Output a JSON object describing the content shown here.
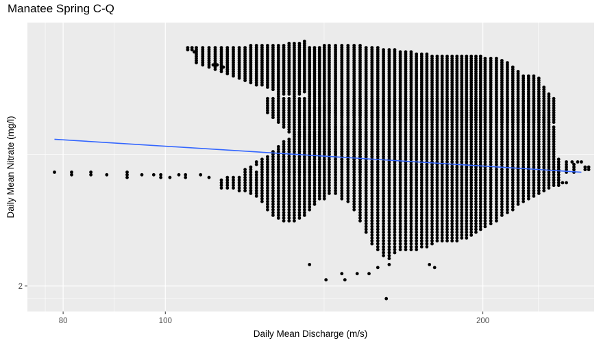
{
  "chart_data": {
    "type": "scatter",
    "title": "Manatee Spring C-Q",
    "xlabel": "Daily Mean Discharge (m/s)",
    "ylabel": "Daily Mean Nitrate (mg/l)",
    "x_scale": "log",
    "y_scale": "log",
    "x_ticks": [
      80,
      100,
      200
    ],
    "y_ticks": [
      2
    ],
    "xlim": [
      74,
      255
    ],
    "ylim": [
      1.92,
      3.05
    ],
    "grid": true,
    "legend": "none",
    "colors": {
      "panel": "#ebebeb",
      "grid": "#ffffff",
      "points": "#000000",
      "trend": "#3366ff"
    },
    "trend_line": {
      "x": [
        78.5,
        248
      ],
      "y": [
        2.53,
        2.4
      ]
    },
    "value_step": 0.01,
    "outlier_points": [
      {
        "x": 78.5,
        "y": 2.4
      },
      {
        "x": 81.5,
        "y": 2.4
      },
      {
        "x": 81.5,
        "y": 2.39
      },
      {
        "x": 85,
        "y": 2.4
      },
      {
        "x": 85,
        "y": 2.39
      },
      {
        "x": 88,
        "y": 2.39
      },
      {
        "x": 92,
        "y": 2.4
      },
      {
        "x": 92,
        "y": 2.39
      },
      {
        "x": 92,
        "y": 2.38
      },
      {
        "x": 95,
        "y": 2.39
      },
      {
        "x": 97.5,
        "y": 2.39
      },
      {
        "x": 99,
        "y": 2.39
      },
      {
        "x": 99,
        "y": 2.38
      },
      {
        "x": 101,
        "y": 2.38
      },
      {
        "x": 103,
        "y": 2.39
      },
      {
        "x": 104.5,
        "y": 2.39
      },
      {
        "x": 104.5,
        "y": 2.38
      },
      {
        "x": 108,
        "y": 2.39
      },
      {
        "x": 110,
        "y": 2.38
      },
      {
        "x": 105,
        "y": 2.93
      },
      {
        "x": 106,
        "y": 2.93
      },
      {
        "x": 105,
        "y": 2.92
      },
      {
        "x": 106,
        "y": 2.92
      },
      {
        "x": 106.5,
        "y": 2.91
      },
      {
        "x": 111,
        "y": 2.85
      },
      {
        "x": 112,
        "y": 2.85
      },
      {
        "x": 113.5,
        "y": 2.84
      },
      {
        "x": 114.5,
        "y": 2.83
      },
      {
        "x": 163,
        "y": 2.09
      },
      {
        "x": 163,
        "y": 2.07
      },
      {
        "x": 159,
        "y": 2.06
      },
      {
        "x": 178,
        "y": 2.07
      },
      {
        "x": 180,
        "y": 2.06
      },
      {
        "x": 147,
        "y": 2.04
      },
      {
        "x": 152,
        "y": 2.04
      },
      {
        "x": 156,
        "y": 2.04
      },
      {
        "x": 142,
        "y": 2.02
      },
      {
        "x": 148,
        "y": 2.02
      },
      {
        "x": 162,
        "y": 1.96
      },
      {
        "x": 137,
        "y": 2.07
      },
      {
        "x": 250,
        "y": 2.42
      },
      {
        "x": 252,
        "y": 2.42
      },
      {
        "x": 250,
        "y": 2.41
      },
      {
        "x": 252,
        "y": 2.41
      },
      {
        "x": 246,
        "y": 2.44
      },
      {
        "x": 248,
        "y": 2.44
      },
      {
        "x": 243,
        "y": 2.44
      },
      {
        "x": 238,
        "y": 2.36
      },
      {
        "x": 240,
        "y": 2.36
      }
    ],
    "point_columns": [
      {
        "x": 107,
        "y_ranges": [
          [
            2.86,
            2.93
          ]
        ]
      },
      {
        "x": 108.5,
        "y_ranges": [
          [
            2.85,
            2.93
          ]
        ]
      },
      {
        "x": 110,
        "y_ranges": [
          [
            2.84,
            2.93
          ]
        ]
      },
      {
        "x": 111.5,
        "y_ranges": [
          [
            2.83,
            2.93
          ]
        ]
      },
      {
        "x": 113,
        "y_ranges": [
          [
            2.82,
            2.93
          ],
          [
            2.34,
            2.37
          ]
        ]
      },
      {
        "x": 114.5,
        "y_ranges": [
          [
            2.81,
            2.93
          ],
          [
            2.34,
            2.38
          ]
        ]
      },
      {
        "x": 116,
        "y_ranges": [
          [
            2.8,
            2.93
          ],
          [
            2.34,
            2.38
          ]
        ]
      },
      {
        "x": 117.5,
        "y_ranges": [
          [
            2.79,
            2.93
          ],
          [
            2.33,
            2.38
          ]
        ]
      },
      {
        "x": 119,
        "y_ranges": [
          [
            2.78,
            2.93
          ],
          [
            2.4,
            2.41
          ],
          [
            2.33,
            2.39
          ]
        ]
      },
      {
        "x": 120.5,
        "y_ranges": [
          [
            2.77,
            2.94
          ],
          [
            2.4,
            2.42
          ],
          [
            2.32,
            2.39
          ]
        ]
      },
      {
        "x": 122,
        "y_ranges": [
          [
            2.76,
            2.94
          ],
          [
            2.43,
            2.44
          ],
          [
            2.31,
            2.4
          ]
        ]
      },
      {
        "x": 123.5,
        "y_ranges": [
          [
            2.76,
            2.94
          ],
          [
            2.42,
            2.45
          ],
          [
            2.29,
            2.41
          ]
        ]
      },
      {
        "x": 125,
        "y_ranges": [
          [
            2.75,
            2.94
          ],
          [
            2.64,
            2.7
          ],
          [
            2.41,
            2.46
          ],
          [
            2.26,
            2.4
          ]
        ]
      },
      {
        "x": 126.5,
        "y_ranges": [
          [
            2.74,
            2.94
          ],
          [
            2.62,
            2.7
          ],
          [
            2.4,
            2.48
          ],
          [
            2.24,
            2.4
          ]
        ]
      },
      {
        "x": 128,
        "y_ranges": [
          [
            2.73,
            2.94
          ],
          [
            2.6,
            2.72
          ],
          [
            2.4,
            2.5
          ],
          [
            2.23,
            2.4
          ]
        ]
      },
      {
        "x": 129.5,
        "y_ranges": [
          [
            2.72,
            2.94
          ],
          [
            2.58,
            2.7
          ],
          [
            2.4,
            2.52
          ],
          [
            2.22,
            2.4
          ]
        ]
      },
      {
        "x": 131,
        "y_ranges": [
          [
            2.72,
            2.95
          ],
          [
            2.56,
            2.7
          ],
          [
            2.4,
            2.53
          ],
          [
            2.22,
            2.4
          ]
        ]
      },
      {
        "x": 132.5,
        "y_ranges": [
          [
            2.71,
            2.95
          ],
          [
            2.55,
            2.7
          ],
          [
            2.4,
            2.55
          ],
          [
            2.22,
            2.4
          ]
        ]
      },
      {
        "x": 134,
        "y_ranges": [
          [
            2.72,
            2.95
          ],
          [
            2.54,
            2.7
          ],
          [
            2.4,
            2.56
          ],
          [
            2.23,
            2.4
          ]
        ]
      },
      {
        "x": 135.5,
        "y_ranges": [
          [
            2.73,
            2.96
          ],
          [
            2.53,
            2.7
          ],
          [
            2.4,
            2.58
          ],
          [
            2.24,
            2.4
          ]
        ]
      },
      {
        "x": 137,
        "y_ranges": [
          [
            2.67,
            2.93
          ],
          [
            2.5,
            2.66
          ],
          [
            2.4,
            2.55
          ],
          [
            2.26,
            2.4
          ]
        ]
      },
      {
        "x": 138.5,
        "y_ranges": [
          [
            2.66,
            2.93
          ],
          [
            2.49,
            2.66
          ],
          [
            2.28,
            2.56
          ]
        ]
      },
      {
        "x": 140,
        "y_ranges": [
          [
            2.65,
            2.93
          ],
          [
            2.48,
            2.66
          ],
          [
            2.3,
            2.56
          ]
        ]
      },
      {
        "x": 141.5,
        "y_ranges": [
          [
            2.65,
            2.94
          ],
          [
            2.47,
            2.67
          ],
          [
            2.3,
            2.57
          ]
        ]
      },
      {
        "x": 143,
        "y_ranges": [
          [
            2.64,
            2.94
          ],
          [
            2.46,
            2.68
          ],
          [
            2.32,
            2.57
          ]
        ]
      },
      {
        "x": 145,
        "y_ranges": [
          [
            2.64,
            2.94
          ],
          [
            2.45,
            2.68
          ],
          [
            2.32,
            2.58
          ]
        ]
      },
      {
        "x": 147,
        "y_ranges": [
          [
            2.63,
            2.94
          ],
          [
            2.44,
            2.69
          ],
          [
            2.3,
            2.58
          ]
        ]
      },
      {
        "x": 149,
        "y_ranges": [
          [
            2.63,
            2.94
          ],
          [
            2.43,
            2.7
          ],
          [
            2.29,
            2.58
          ]
        ]
      },
      {
        "x": 151,
        "y_ranges": [
          [
            2.63,
            2.94
          ],
          [
            2.42,
            2.7
          ],
          [
            2.26,
            2.57
          ]
        ]
      },
      {
        "x": 153,
        "y_ranges": [
          [
            2.63,
            2.94
          ],
          [
            2.4,
            2.7
          ],
          [
            2.22,
            2.57
          ]
        ]
      },
      {
        "x": 155,
        "y_ranges": [
          [
            2.62,
            2.93
          ],
          [
            2.38,
            2.7
          ],
          [
            2.18,
            2.56
          ]
        ]
      },
      {
        "x": 157,
        "y_ranges": [
          [
            2.62,
            2.93
          ],
          [
            2.35,
            2.7
          ],
          [
            2.14,
            2.56
          ]
        ]
      },
      {
        "x": 159,
        "y_ranges": [
          [
            2.62,
            2.93
          ],
          [
            2.12,
            2.7
          ]
        ]
      },
      {
        "x": 161,
        "y_ranges": [
          [
            2.62,
            2.92
          ],
          [
            2.1,
            2.7
          ]
        ]
      },
      {
        "x": 163,
        "y_ranges": [
          [
            2.62,
            2.92
          ],
          [
            2.1,
            2.7
          ]
        ]
      },
      {
        "x": 165,
        "y_ranges": [
          [
            2.61,
            2.92
          ],
          [
            2.11,
            2.7
          ]
        ]
      },
      {
        "x": 167,
        "y_ranges": [
          [
            2.61,
            2.91
          ],
          [
            2.12,
            2.7
          ]
        ]
      },
      {
        "x": 169,
        "y_ranges": [
          [
            2.61,
            2.91
          ],
          [
            2.12,
            2.7
          ]
        ]
      },
      {
        "x": 171,
        "y_ranges": [
          [
            2.61,
            2.91
          ],
          [
            2.12,
            2.7
          ]
        ]
      },
      {
        "x": 173,
        "y_ranges": [
          [
            2.61,
            2.9
          ],
          [
            2.12,
            2.7
          ]
        ]
      },
      {
        "x": 175,
        "y_ranges": [
          [
            2.61,
            2.9
          ],
          [
            2.13,
            2.7
          ]
        ]
      },
      {
        "x": 177,
        "y_ranges": [
          [
            2.61,
            2.9
          ],
          [
            2.13,
            2.7
          ]
        ]
      },
      {
        "x": 179,
        "y_ranges": [
          [
            2.61,
            2.89
          ],
          [
            2.14,
            2.7
          ]
        ]
      },
      {
        "x": 181,
        "y_ranges": [
          [
            2.61,
            2.89
          ],
          [
            2.15,
            2.7
          ]
        ]
      },
      {
        "x": 183,
        "y_ranges": [
          [
            2.61,
            2.89
          ],
          [
            2.15,
            2.7
          ]
        ]
      },
      {
        "x": 185,
        "y_ranges": [
          [
            2.61,
            2.89
          ],
          [
            2.15,
            2.7
          ]
        ]
      },
      {
        "x": 187,
        "y_ranges": [
          [
            2.61,
            2.89
          ],
          [
            2.15,
            2.7
          ]
        ]
      },
      {
        "x": 189,
        "y_ranges": [
          [
            2.61,
            2.89
          ],
          [
            2.15,
            2.7
          ]
        ]
      },
      {
        "x": 191,
        "y_ranges": [
          [
            2.61,
            2.89
          ],
          [
            2.16,
            2.7
          ]
        ]
      },
      {
        "x": 193,
        "y_ranges": [
          [
            2.61,
            2.89
          ],
          [
            2.16,
            2.7
          ]
        ]
      },
      {
        "x": 195,
        "y_ranges": [
          [
            2.61,
            2.89
          ],
          [
            2.17,
            2.7
          ]
        ]
      },
      {
        "x": 197,
        "y_ranges": [
          [
            2.61,
            2.89
          ],
          [
            2.18,
            2.7
          ]
        ]
      },
      {
        "x": 199,
        "y_ranges": [
          [
            2.61,
            2.89
          ],
          [
            2.19,
            2.7
          ]
        ]
      },
      {
        "x": 201,
        "y_ranges": [
          [
            2.6,
            2.88
          ],
          [
            2.2,
            2.7
          ]
        ]
      },
      {
        "x": 203.5,
        "y_ranges": [
          [
            2.6,
            2.88
          ],
          [
            2.21,
            2.7
          ]
        ]
      },
      {
        "x": 206,
        "y_ranges": [
          [
            2.6,
            2.88
          ],
          [
            2.22,
            2.7
          ]
        ]
      },
      {
        "x": 208.5,
        "y_ranges": [
          [
            2.6,
            2.87
          ],
          [
            2.24,
            2.7
          ]
        ]
      },
      {
        "x": 211,
        "y_ranges": [
          [
            2.6,
            2.86
          ],
          [
            2.25,
            2.7
          ]
        ]
      },
      {
        "x": 213.5,
        "y_ranges": [
          [
            2.6,
            2.84
          ],
          [
            2.26,
            2.7
          ]
        ]
      },
      {
        "x": 216,
        "y_ranges": [
          [
            2.6,
            2.82
          ],
          [
            2.28,
            2.7
          ]
        ]
      },
      {
        "x": 218.5,
        "y_ranges": [
          [
            2.6,
            2.8
          ],
          [
            2.29,
            2.7
          ]
        ]
      },
      {
        "x": 221,
        "y_ranges": [
          [
            2.6,
            2.8
          ],
          [
            2.3,
            2.7
          ]
        ]
      },
      {
        "x": 223.5,
        "y_ranges": [
          [
            2.6,
            2.8
          ],
          [
            2.31,
            2.7
          ]
        ]
      },
      {
        "x": 226,
        "y_ranges": [
          [
            2.6,
            2.79
          ],
          [
            2.32,
            2.7
          ]
        ]
      },
      {
        "x": 228.5,
        "y_ranges": [
          [
            2.6,
            2.75
          ],
          [
            2.33,
            2.62
          ]
        ]
      },
      {
        "x": 231,
        "y_ranges": [
          [
            2.6,
            2.72
          ],
          [
            2.34,
            2.6
          ]
        ]
      },
      {
        "x": 233.5,
        "y_ranges": [
          [
            2.6,
            2.7
          ],
          [
            2.35,
            2.58
          ]
        ]
      },
      {
        "x": 236,
        "y_ranges": [
          [
            2.35,
            2.45
          ]
        ]
      },
      {
        "x": 240,
        "y_ranges": [
          [
            2.4,
            2.44
          ]
        ]
      },
      {
        "x": 244,
        "y_ranges": [
          [
            2.4,
            2.43
          ]
        ]
      }
    ]
  }
}
